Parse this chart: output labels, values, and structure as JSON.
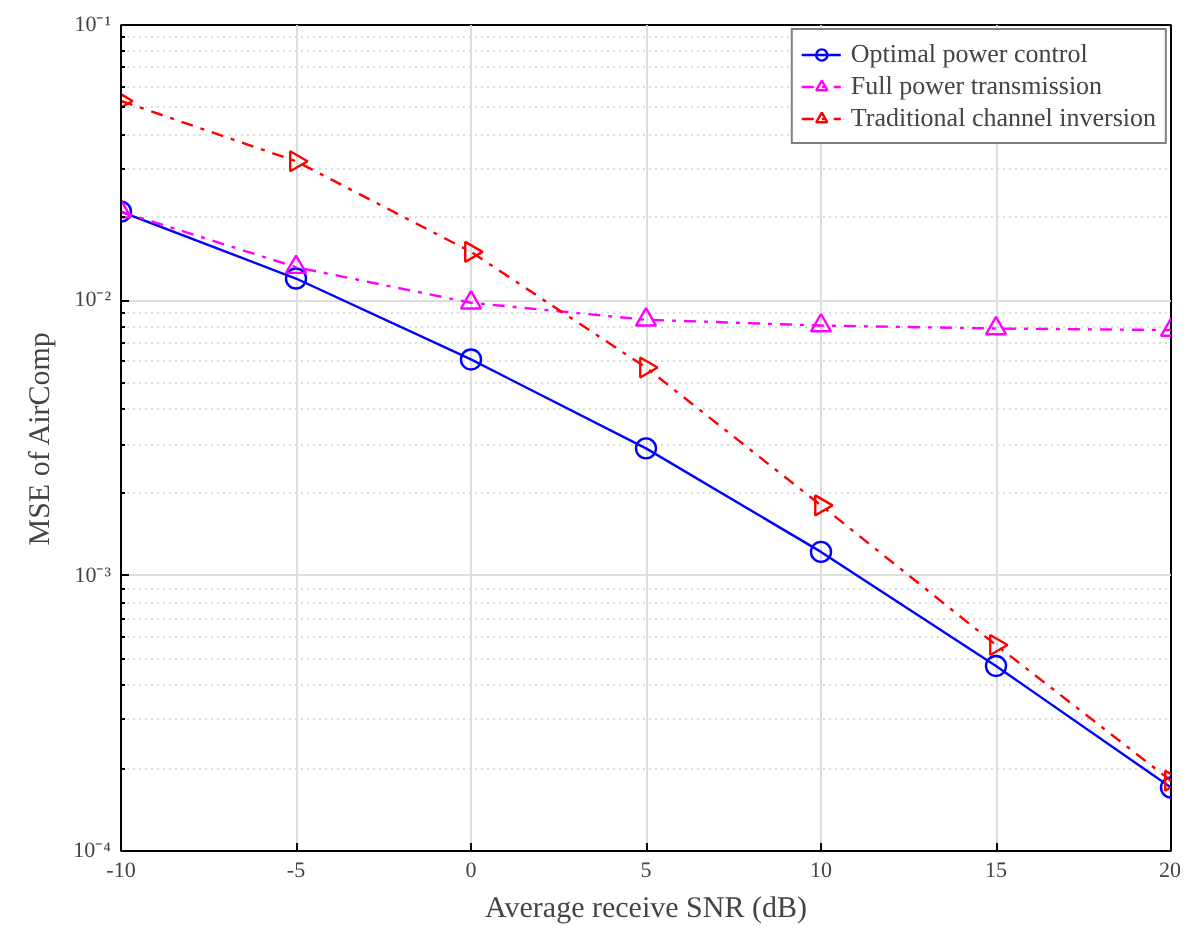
{
  "chart_data": {
    "type": "line",
    "xlabel": "Average receive SNR (dB)",
    "ylabel": "MSE of AirComp",
    "x": [
      -10,
      -5,
      0,
      5,
      10,
      15,
      20
    ],
    "series": [
      {
        "name": "Optimal power control",
        "color": "#0000ff",
        "marker": "circle",
        "line_style": "solid",
        "values": [
          0.021,
          0.012,
          0.0061,
          0.0029,
          0.00122,
          0.00047,
          0.00017
        ]
      },
      {
        "name": "Full power transmission",
        "color": "#ff00ff",
        "marker": "triangle",
        "line_style": "dashdot",
        "values": [
          0.021,
          0.0132,
          0.0098,
          0.0085,
          0.0081,
          0.0079,
          0.0078
        ]
      },
      {
        "name": "Traditional channel inversion",
        "color": "#ff0000",
        "marker": "triangle_right",
        "line_style": "dashdot",
        "values": [
          0.053,
          0.032,
          0.015,
          0.0057,
          0.0018,
          0.00056,
          0.00018
        ]
      }
    ],
    "xlim": [
      -10,
      20
    ],
    "xticks": [
      -10,
      -5,
      0,
      5,
      10,
      15,
      20
    ],
    "ylim": [
      0.0001,
      0.1
    ],
    "yticks": [
      {
        "value": 0.0001,
        "label": "10⁻⁴"
      },
      {
        "value": 0.001,
        "label": "10⁻³"
      },
      {
        "value": 0.01,
        "label": "10⁻²"
      },
      {
        "value": 0.1,
        "label": "10⁻¹"
      }
    ],
    "log": "y",
    "grid": true,
    "legend": "top right"
  }
}
